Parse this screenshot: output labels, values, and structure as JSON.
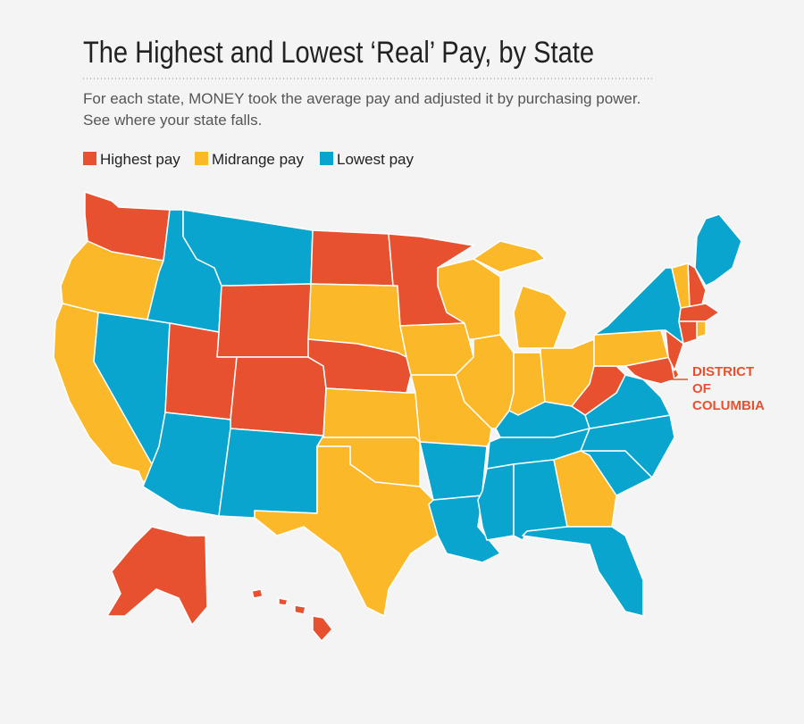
{
  "title": "The Highest and Lowest ‘Real’ Pay, by State",
  "subtitle": [
    "For each state, MONEY took the average pay and adjusted it by purchasing power.",
    "See where your state falls."
  ],
  "legend": [
    {
      "label": "Highest pay",
      "color": "#e8512f"
    },
    {
      "label": "Midrange pay",
      "color": "#fbb829"
    },
    {
      "label": "Lowest pay",
      "color": "#0aa5cf"
    }
  ],
  "dc_label": [
    "DISTRICT",
    "OF",
    "COLUMBIA"
  ]
}
